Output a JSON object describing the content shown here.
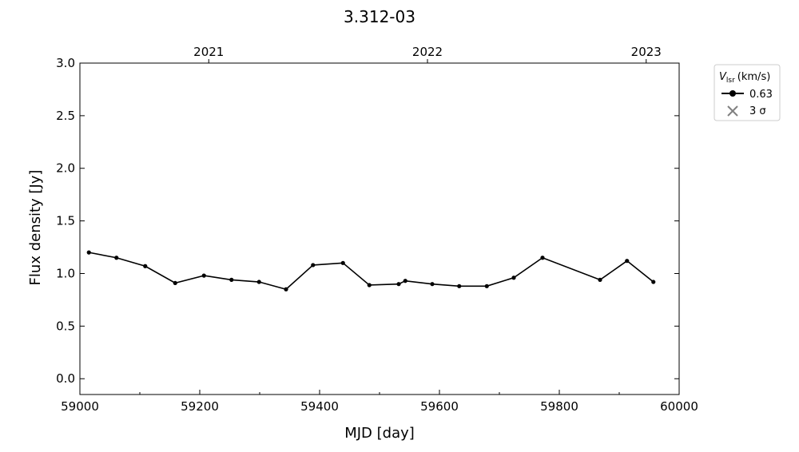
{
  "chart_data": {
    "type": "line",
    "title": "3.312-03",
    "xlabel": "MJD [day]",
    "ylabel": "Flux density [Jy]",
    "xlim": [
      59000,
      60000
    ],
    "xticks": [
      59000,
      59200,
      59400,
      59600,
      59800,
      60000
    ],
    "xminorticks": [
      59100,
      59300,
      59500,
      59700,
      59900
    ],
    "x2ticks": [
      {
        "value": 59215,
        "label": "2021"
      },
      {
        "value": 59580,
        "label": "2022"
      },
      {
        "value": 59945,
        "label": "2023"
      }
    ],
    "ylim": [
      -0.15,
      3.0
    ],
    "yticks": [
      {
        "value": 0,
        "label": "0.0"
      },
      {
        "value": 0.5,
        "label": "0.5"
      },
      {
        "value": 1,
        "label": "1.0"
      },
      {
        "value": 1.5,
        "label": "1.5"
      },
      {
        "value": 2,
        "label": "2.0"
      },
      {
        "value": 2.5,
        "label": "2.5"
      },
      {
        "value": 3,
        "label": "3.0"
      }
    ],
    "x": [
      59015,
      59061,
      59109,
      59159,
      59207,
      59253,
      59299,
      59344,
      59389,
      59439,
      59483,
      59532,
      59543,
      59588,
      59633,
      59679,
      59724,
      59772,
      59868,
      59913,
      59957
    ],
    "series": [
      {
        "name": "0.63",
        "color": "#000000",
        "values": [
          1.2,
          1.15,
          1.07,
          0.91,
          0.98,
          0.94,
          0.92,
          0.85,
          1.08,
          1.1,
          0.89,
          0.9,
          0.93,
          0.9,
          0.88,
          0.88,
          0.96,
          1.15,
          0.94,
          1.12,
          0.92
        ]
      }
    ],
    "legend_title": {
      "symbol": "V",
      "subscript": "lsr",
      "unit": "(km/s)"
    },
    "limit_legend": {
      "label": "3 σ",
      "color": "#808080"
    },
    "legend_position": "outside-upper-right"
  }
}
